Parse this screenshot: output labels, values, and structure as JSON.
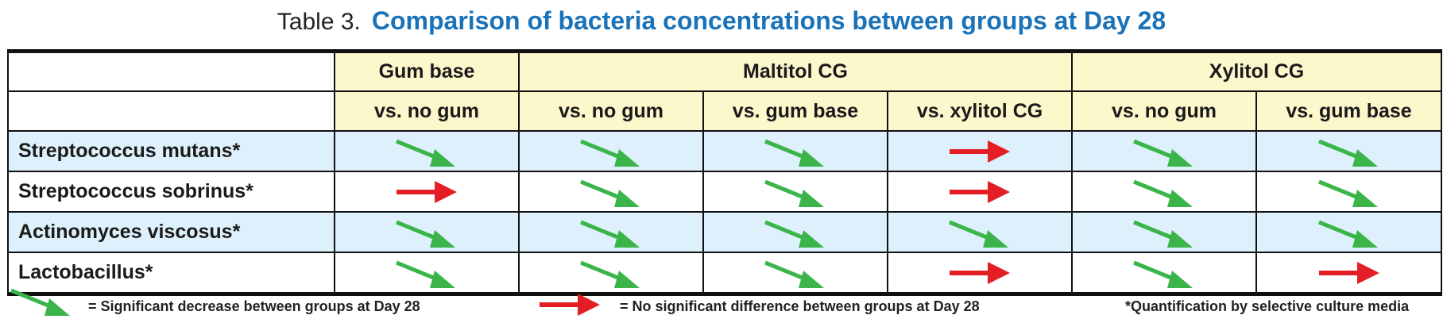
{
  "title": {
    "label": "Table 3.",
    "text": "Comparison of bacteria concentrations between groups at Day 28"
  },
  "colors": {
    "title": "#1a72b8",
    "header_bg": "#fdf7cc",
    "alt_row_bg": "#def0fb",
    "decrease": "#3bb54a",
    "no_difference": "#e31e24"
  },
  "header": {
    "groups": [
      "Gum base",
      "Maltitol CG",
      "Xylitol CG"
    ],
    "comparisons": [
      "vs. no gum",
      "vs. no gum",
      "vs. gum base",
      "vs. xylitol CG",
      "vs. no gum",
      "vs. gum base"
    ]
  },
  "rows": [
    {
      "name": "Streptococcus mutans*",
      "values": [
        "decrease",
        "decrease",
        "decrease",
        "no-difference",
        "decrease",
        "decrease"
      ]
    },
    {
      "name": "Streptococcus sobrinus*",
      "values": [
        "no-difference",
        "decrease",
        "decrease",
        "no-difference",
        "decrease",
        "decrease"
      ]
    },
    {
      "name": "Actinomyces viscosus*",
      "values": [
        "decrease",
        "decrease",
        "decrease",
        "decrease",
        "decrease",
        "decrease"
      ]
    },
    {
      "name": "Lactobacillus*",
      "values": [
        "decrease",
        "decrease",
        "decrease",
        "no-difference",
        "decrease",
        "no-difference"
      ]
    }
  ],
  "legend": {
    "decrease": "= Significant decrease between groups at Day 28",
    "no_difference": "= No significant difference between groups at Day 28",
    "footnote": "*Quantification by selective culture media"
  }
}
